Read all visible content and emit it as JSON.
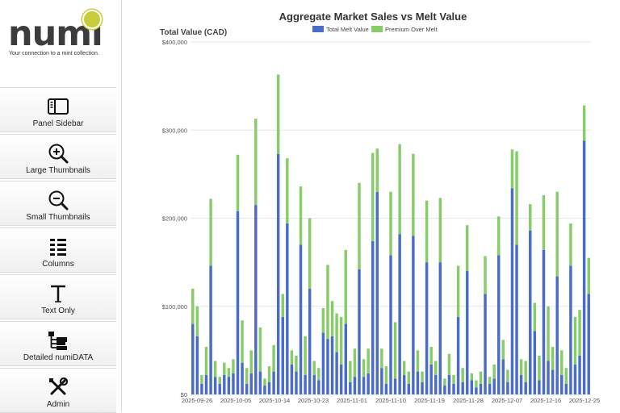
{
  "brand": {
    "logo_text": "numi",
    "tagline": "Your connection to a mint collection."
  },
  "sidebar": {
    "items": [
      {
        "label": "Panel Sidebar",
        "icon": "panel-sidebar-icon"
      },
      {
        "label": "Large Thumbnails",
        "icon": "zoom-in-icon"
      },
      {
        "label": "Small Thumbnails",
        "icon": "zoom-out-icon"
      },
      {
        "label": "Columns",
        "icon": "columns-icon"
      },
      {
        "label": "Text Only",
        "icon": "text-icon"
      },
      {
        "label": "Detailed numiDATA",
        "icon": "tree-icon"
      },
      {
        "label": "Admin",
        "icon": "tools-icon"
      }
    ]
  },
  "chart_data": {
    "type": "bar",
    "stacked": true,
    "title": "Aggregate Market Sales vs Melt Value",
    "ylabel": "Total Value (CAD)",
    "ylim": [
      0,
      400000
    ],
    "yticks": [
      "$0",
      "$100,000",
      "$200,000",
      "$300,000",
      "$400,000"
    ],
    "xticks": [
      "2025-09-26",
      "2025-10-05",
      "2025-10-14",
      "2025-10-23",
      "2025-11-01",
      "2025-11-10",
      "2025-11-19",
      "2025-11-28",
      "2025-12-07",
      "2025-12-16",
      "2025-12-25"
    ],
    "grid": true,
    "legend_position": "top",
    "colors": {
      "melt": "#4a6cc8",
      "premium": "#88cc6a"
    },
    "series": [
      {
        "name": "Total Melt Value",
        "values": [
          80000,
          66000,
          12000,
          22000,
          146000,
          20000,
          12000,
          22000,
          20000,
          24000,
          208000,
          36000,
          12000,
          24000,
          215000,
          26000,
          10000,
          14000,
          26000,
          273000,
          88000,
          194000,
          34000,
          26000,
          170000,
          22000,
          120000,
          22000,
          16000,
          70000,
          63000,
          66000,
          48000,
          34000,
          80000,
          14000,
          20000,
          142000,
          20000,
          24000,
          174000,
          230000,
          30000,
          12000,
          158000,
          18000,
          182000,
          22000,
          12000,
          180000,
          26000,
          14000,
          150000,
          34000,
          22000,
          150000,
          10000,
          22000,
          12000,
          88000,
          14000,
          140000,
          16000,
          8000,
          12000,
          114000,
          12000,
          18000,
          158000,
          40000,
          14000,
          234000,
          170000,
          22000,
          14000,
          186000,
          72000,
          16000,
          164000,
          38000,
          28000,
          134000,
          22000,
          12000,
          146000,
          34000,
          44000,
          288000,
          114000
        ]
      },
      {
        "name": "Premium Over Melt",
        "values": [
          40000,
          34000,
          10000,
          32000,
          76000,
          18000,
          8000,
          14000,
          10000,
          16000,
          64000,
          48000,
          18000,
          26000,
          98000,
          50000,
          8000,
          18000,
          30000,
          90000,
          26000,
          74000,
          16000,
          18000,
          66000,
          44000,
          80000,
          16000,
          14000,
          28000,
          84000,
          40000,
          44000,
          54000,
          84000,
          24000,
          32000,
          98000,
          20000,
          28000,
          100000,
          49000,
          22000,
          20000,
          72000,
          64000,
          102000,
          16000,
          14000,
          93000,
          24000,
          12000,
          70000,
          20000,
          16000,
          73000,
          8000,
          24000,
          10000,
          58000,
          16000,
          52000,
          8000,
          8000,
          14000,
          43000,
          8000,
          16000,
          44000,
          22000,
          14000,
          44000,
          106000,
          18000,
          24000,
          30000,
          32000,
          28000,
          62000,
          62000,
          26000,
          96000,
          28000,
          18000,
          48000,
          54000,
          52000,
          40000,
          41000
        ]
      }
    ]
  }
}
